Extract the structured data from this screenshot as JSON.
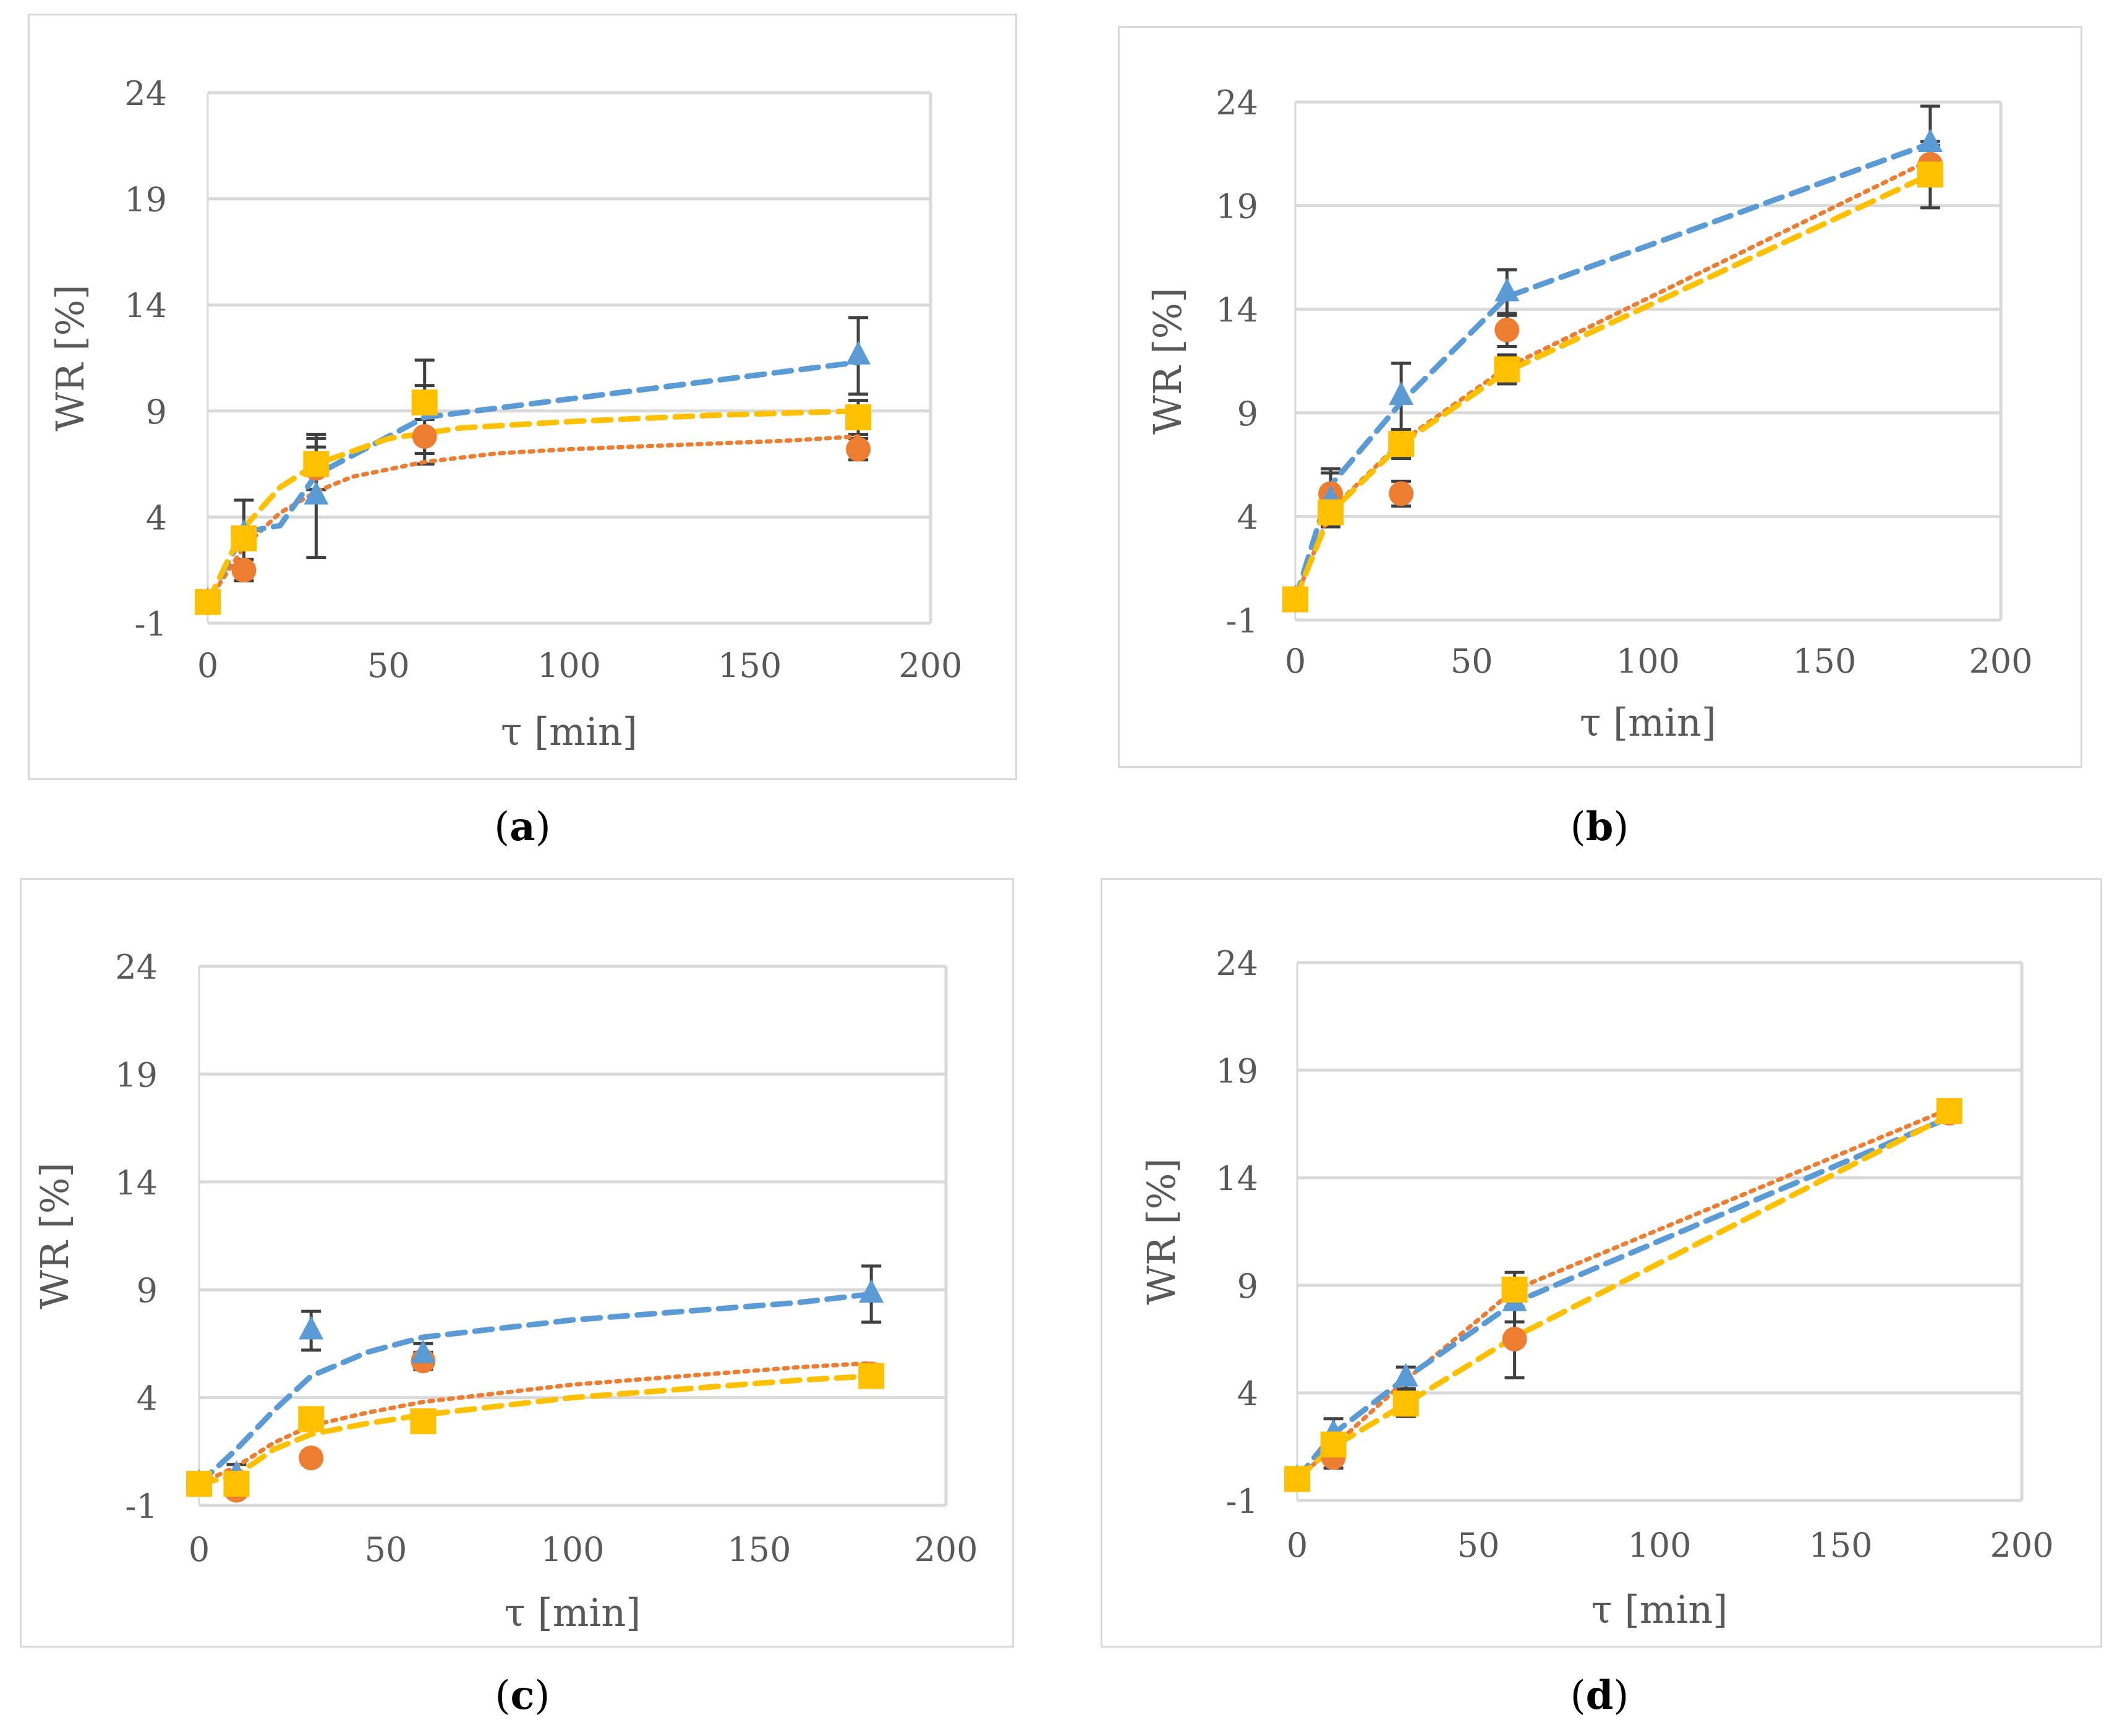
{
  "colors": {
    "series1": "#ed7d31",
    "series2": "#5b9bd5",
    "series3": "#ffc000",
    "errorbar": "#404040",
    "grid": "#d9d9d9",
    "axis_text": "#595959",
    "frame": "#d9d9d9"
  },
  "panel_labels": [
    "a",
    "b",
    "c",
    "d"
  ],
  "chart_data": [
    {
      "type": "scatter",
      "panel": "a",
      "xlabel": "τ [min]",
      "ylabel": "WR [%]",
      "xlim": [
        0,
        200
      ],
      "ylim": [
        -1,
        24
      ],
      "xticks": [
        "0",
        "50",
        "100",
        "150",
        "200"
      ],
      "yticks": [
        "-1",
        "4",
        "9",
        "14",
        "19",
        "24"
      ],
      "grid": true,
      "series": [
        {
          "name": "series1",
          "marker": "circle",
          "trend": "dotted",
          "x": [
            0,
            10,
            30,
            60,
            180
          ],
          "y": [
            0,
            1.5,
            6.3,
            7.8,
            7.2
          ],
          "err": [
            0,
            0.5,
            1.0,
            1.3,
            0.5
          ],
          "trend_x": [
            0,
            10,
            20,
            30,
            40,
            60,
            80,
            100,
            130,
            160,
            180
          ],
          "trend_y": [
            0,
            2.6,
            4.2,
            5.2,
            5.9,
            6.6,
            7.0,
            7.2,
            7.4,
            7.6,
            7.8
          ]
        },
        {
          "name": "series2",
          "marker": "triangle",
          "trend": "dashed",
          "x": [
            0,
            10,
            30,
            60,
            180
          ],
          "y": [
            0,
            3.2,
            5.0,
            9.2,
            11.6
          ],
          "err": [
            0,
            1.6,
            2.9,
            2.2,
            1.8
          ],
          "trend_x": [
            0,
            10,
            20,
            30,
            60,
            180
          ],
          "trend_y": [
            0,
            3.3,
            3.6,
            6.0,
            8.7,
            11.3
          ]
        },
        {
          "name": "series3",
          "marker": "square",
          "trend": "dashed",
          "x": [
            0,
            10,
            30,
            60,
            180
          ],
          "y": [
            0,
            3.0,
            6.5,
            9.4,
            8.7
          ],
          "err": [
            0,
            0.5,
            1.2,
            0.8,
            0.8
          ],
          "trend_x": [
            0,
            10,
            20,
            30,
            50,
            70,
            100,
            140,
            180
          ],
          "trend_y": [
            0,
            3.5,
            5.4,
            6.5,
            7.7,
            8.2,
            8.5,
            8.8,
            9.0
          ]
        }
      ]
    },
    {
      "type": "scatter",
      "panel": "b",
      "xlabel": "τ [min]",
      "ylabel": "WR [%]",
      "xlim": [
        0,
        200
      ],
      "ylim": [
        -1,
        24
      ],
      "xticks": [
        "0",
        "50",
        "100",
        "150",
        "200"
      ],
      "yticks": [
        "-1",
        "4",
        "9",
        "14",
        "19",
        "24"
      ],
      "grid": true,
      "series": [
        {
          "name": "series1",
          "marker": "circle",
          "trend": "dotted",
          "x": [
            0,
            10,
            30,
            60,
            180
          ],
          "y": [
            0,
            5.1,
            5.1,
            13.0,
            21.0
          ],
          "err": [
            0,
            1.2,
            0.6,
            0.8,
            0.9
          ],
          "trend_x": [
            0,
            10,
            30,
            60,
            180
          ],
          "trend_y": [
            0,
            4.3,
            7.6,
            11.2,
            21.2
          ]
        },
        {
          "name": "series2",
          "marker": "triangle",
          "trend": "dashed",
          "x": [
            0,
            10,
            30,
            60,
            180
          ],
          "y": [
            0,
            4.8,
            9.8,
            14.8,
            22.0
          ],
          "err": [
            0,
            1.3,
            1.6,
            1.1,
            1.8
          ],
          "trend_x": [
            0,
            10,
            30,
            60,
            180
          ],
          "trend_y": [
            0,
            5.5,
            9.5,
            14.6,
            22.0
          ]
        },
        {
          "name": "series3",
          "marker": "square",
          "trend": "dashed",
          "x": [
            0,
            10,
            30,
            60,
            180
          ],
          "y": [
            0,
            4.2,
            7.5,
            11.1,
            20.5
          ],
          "err": [
            0,
            0.6,
            0.7,
            0.7,
            1.6
          ],
          "trend_x": [
            0,
            10,
            30,
            60,
            180
          ],
          "trend_y": [
            0,
            4.2,
            7.5,
            11.0,
            20.5
          ]
        }
      ]
    },
    {
      "type": "scatter",
      "panel": "c",
      "xlabel": "τ [min]",
      "ylabel": "WR [%]",
      "xlim": [
        0,
        200
      ],
      "ylim": [
        -1,
        24
      ],
      "xticks": [
        "0",
        "50",
        "100",
        "150",
        "200"
      ],
      "yticks": [
        "-1",
        "4",
        "9",
        "14",
        "19",
        "24"
      ],
      "grid": true,
      "series": [
        {
          "name": "series1",
          "marker": "circle",
          "trend": "dotted",
          "x": [
            0,
            10,
            30,
            60,
            180
          ],
          "y": [
            0,
            -0.3,
            1.2,
            5.7,
            5.1
          ],
          "err": [
            0,
            0.3,
            0.3,
            0.4,
            0.3
          ],
          "trend_x": [
            0,
            10,
            20,
            30,
            45,
            60,
            80,
            100,
            130,
            160,
            180
          ],
          "trend_y": [
            0,
            0.8,
            1.9,
            2.7,
            3.3,
            3.8,
            4.2,
            4.6,
            5.0,
            5.4,
            5.6
          ]
        },
        {
          "name": "series2",
          "marker": "triangle",
          "trend": "dashed",
          "x": [
            0,
            10,
            30,
            60,
            180
          ],
          "y": [
            0,
            0.4,
            7.1,
            6.0,
            8.8
          ],
          "err": [
            0,
            0.5,
            0.9,
            0.5,
            1.3
          ],
          "trend_x": [
            0,
            10,
            20,
            30,
            45,
            60,
            80,
            100,
            130,
            160,
            180
          ],
          "trend_y": [
            0,
            1.6,
            3.4,
            5.0,
            6.1,
            6.8,
            7.2,
            7.6,
            8.0,
            8.4,
            8.8
          ]
        },
        {
          "name": "series3",
          "marker": "square",
          "trend": "dashed",
          "x": [
            0,
            10,
            30,
            60,
            180
          ],
          "y": [
            0,
            0,
            3.0,
            2.9,
            5.0
          ],
          "err": [
            0,
            0.2,
            0.3,
            0.3,
            0.3
          ],
          "trend_x": [
            0,
            10,
            20,
            30,
            45,
            60,
            80,
            100,
            130,
            160,
            180
          ],
          "trend_y": [
            0,
            0.4,
            1.6,
            2.3,
            2.8,
            3.2,
            3.6,
            4.0,
            4.4,
            4.8,
            5.0
          ]
        }
      ]
    },
    {
      "type": "scatter",
      "panel": "d",
      "xlabel": "τ [min]",
      "ylabel": "WR [%]",
      "xlim": [
        0,
        200
      ],
      "ylim": [
        -1,
        24
      ],
      "xticks": [
        "0",
        "50",
        "100",
        "150",
        "200"
      ],
      "yticks": [
        "-1",
        "4",
        "9",
        "14",
        "19",
        "24"
      ],
      "grid": true,
      "series": [
        {
          "name": "series1",
          "marker": "circle",
          "trend": "dotted",
          "x": [
            0,
            10,
            30,
            60,
            180
          ],
          "y": [
            0,
            1.0,
            3.5,
            6.5,
            17.0
          ],
          "err": [
            0,
            0.5,
            0.5,
            1.8,
            0.4
          ],
          "trend_x": [
            0,
            10,
            30,
            60,
            180
          ],
          "trend_y": [
            0,
            1.5,
            4.6,
            8.8,
            17.2
          ]
        },
        {
          "name": "series2",
          "marker": "triangle",
          "trend": "dashed",
          "x": [
            0,
            10,
            30,
            60,
            180
          ],
          "y": [
            0,
            2.1,
            4.7,
            8.2,
            17.0
          ],
          "err": [
            0,
            0.7,
            0.5,
            0.9,
            0.3
          ],
          "trend_x": [
            0,
            10,
            30,
            60,
            180
          ],
          "trend_y": [
            0,
            2.1,
            4.7,
            8.2,
            16.8
          ]
        },
        {
          "name": "series3",
          "marker": "square",
          "trend": "dashed",
          "x": [
            0,
            10,
            30,
            60,
            180
          ],
          "y": [
            0,
            1.6,
            3.5,
            8.8,
            17.1
          ],
          "err": [
            0,
            0.5,
            0.6,
            0.8,
            0.3
          ],
          "trend_x": [
            0,
            10,
            30,
            60,
            180
          ],
          "trend_y": [
            0,
            1.5,
            3.5,
            6.6,
            16.9
          ]
        }
      ]
    }
  ]
}
